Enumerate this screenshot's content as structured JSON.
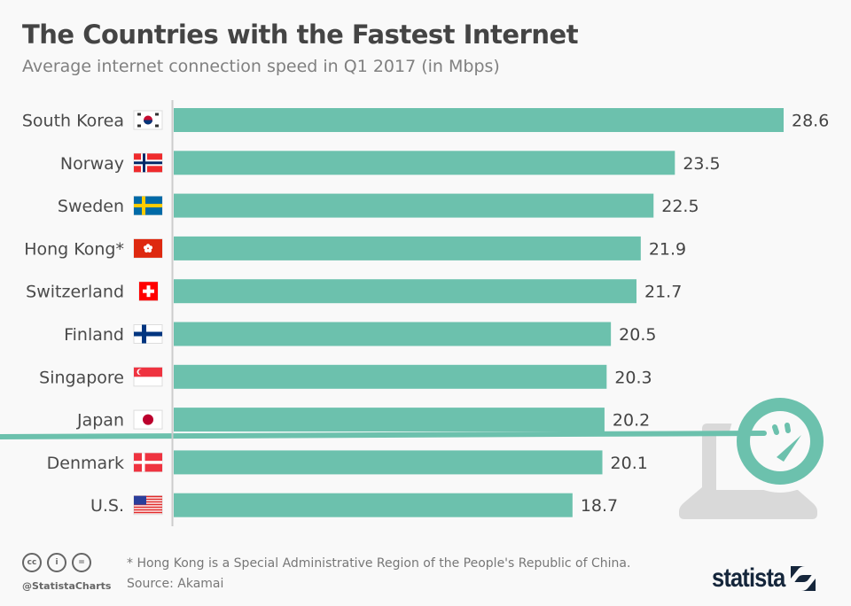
{
  "header": {
    "title": "The Countries with the Fastest Internet",
    "subtitle": "Average internet connection speed in Q1 2017 (in Mbps)"
  },
  "colors": {
    "bar": "#6cc1ad",
    "value_text": "#444444",
    "label_text": "#4a4a4a",
    "axis": "#cccccc",
    "illustration_gray": "#d9d9d9",
    "logo": "#15263b"
  },
  "chart_data": {
    "type": "bar",
    "orientation": "horizontal",
    "title": "The Countries with the Fastest Internet",
    "subtitle": "Average internet connection speed in Q1 2017 (in Mbps)",
    "xlabel": "",
    "ylabel": "",
    "xlim": [
      0,
      28.6
    ],
    "grid": false,
    "categories": [
      "South Korea",
      "Norway",
      "Sweden",
      "Hong Kong*",
      "Switzerland",
      "Finland",
      "Singapore",
      "Japan",
      "Denmark",
      "U.S."
    ],
    "flags": [
      "flag-south-korea",
      "flag-norway",
      "flag-sweden",
      "flag-hong-kong",
      "flag-switzerland",
      "flag-finland",
      "flag-singapore",
      "flag-japan",
      "flag-denmark",
      "flag-us"
    ],
    "values": [
      28.6,
      23.5,
      22.5,
      21.9,
      21.7,
      20.5,
      20.3,
      20.2,
      20.1,
      18.7
    ],
    "value_labels": [
      "28.6",
      "23.5",
      "22.5",
      "21.9",
      "21.7",
      "20.5",
      "20.3",
      "20.2",
      "20.1",
      "18.7"
    ]
  },
  "illustration": {
    "icon": "speedometer-laptop-icon"
  },
  "footer": {
    "note": "* Hong Kong is a Special Administrative Region of the People's Republic of China.",
    "source": "Source: Akamai",
    "handle": "@StatistaCharts",
    "license_icons": [
      "cc-icon",
      "by-icon",
      "nd-icon"
    ],
    "license_glyphs": [
      "cc",
      "i",
      "="
    ],
    "logo_text": "statista"
  }
}
